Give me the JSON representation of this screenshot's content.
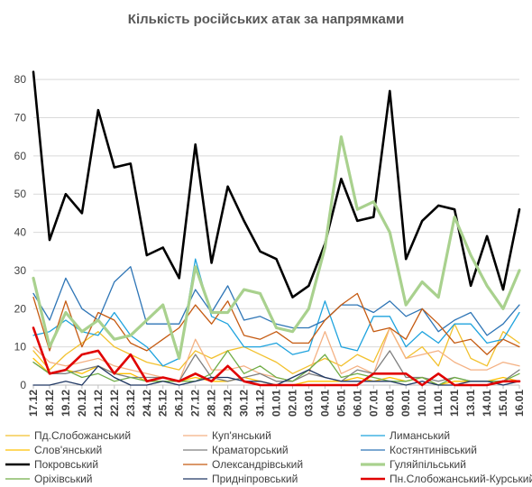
{
  "chart_data": {
    "type": "line",
    "title": "Кількість російських атак за напрямками",
    "xlabel": "",
    "ylabel": "",
    "ylim": [
      0,
      85
    ],
    "yticks": [
      0,
      10,
      20,
      30,
      40,
      50,
      60,
      70,
      80
    ],
    "grid": "horizontal",
    "legend_position": "bottom",
    "categories": [
      "17.12",
      "18.12",
      "19.12",
      "20.12",
      "21.12",
      "22.12",
      "23.12",
      "24.12",
      "25.12",
      "26.12",
      "27.12",
      "28.12",
      "29.12",
      "30.12",
      "31.12",
      "01.01",
      "02.01",
      "03.01",
      "04.01",
      "05.01",
      "06.01",
      "07.01",
      "08.01",
      "09.01",
      "10.01",
      "11.01",
      "12.01",
      "13.01",
      "14.01",
      "15.01",
      "16.01"
    ],
    "series": [
      {
        "name": "Пд.Слобожанський",
        "color": "#f2c12e",
        "width": 1.3,
        "values": [
          9,
          4,
          8,
          11,
          14,
          10,
          8,
          6,
          5,
          4,
          9,
          7,
          9,
          10,
          8,
          6,
          3,
          5,
          7,
          5,
          8,
          6,
          15,
          7,
          10,
          5,
          16,
          7,
          5,
          14,
          11
        ]
      },
      {
        "name": "Куп'янський",
        "color": "#f4b183",
        "width": 1.3,
        "values": [
          10,
          6,
          5,
          6,
          7,
          5,
          4,
          3,
          2,
          1,
          12,
          4,
          4,
          5,
          3,
          2,
          1,
          3,
          14,
          3,
          5,
          3,
          15,
          7,
          8,
          9,
          6,
          4,
          4,
          6,
          5
        ]
      },
      {
        "name": "Лиманський",
        "color": "#1fa3de",
        "width": 1.3,
        "values": [
          13,
          14,
          17,
          14,
          13,
          19,
          13,
          10,
          5,
          7,
          33,
          18,
          16,
          10,
          10,
          11,
          8,
          9,
          22,
          10,
          9,
          18,
          18,
          10,
          14,
          11,
          16,
          16,
          11,
          12,
          19
        ]
      },
      {
        "name": "Слов'янський",
        "color": "#ffc000",
        "width": 1.3,
        "values": [
          7,
          3,
          4,
          3,
          5,
          3,
          3,
          1,
          1,
          1,
          2,
          1,
          1,
          2,
          1,
          0,
          0,
          1,
          1,
          1,
          2,
          1,
          2,
          1,
          2,
          0,
          1,
          1,
          1,
          2,
          1
        ]
      },
      {
        "name": "Краматорський",
        "color": "#7f7f7f",
        "width": 1.3,
        "values": [
          6,
          3,
          3,
          4,
          5,
          3,
          2,
          2,
          2,
          1,
          8,
          2,
          1,
          2,
          3,
          1,
          1,
          3,
          2,
          1,
          4,
          3,
          9,
          2,
          2,
          1,
          2,
          1,
          1,
          1,
          4
        ]
      },
      {
        "name": "Костянтинівський",
        "color": "#2e75b6",
        "width": 1.3,
        "values": [
          24,
          17,
          28,
          20,
          17,
          27,
          31,
          16,
          16,
          16,
          25,
          19,
          26,
          17,
          18,
          16,
          15,
          15,
          17,
          21,
          21,
          19,
          22,
          18,
          20,
          14,
          17,
          19,
          13,
          16,
          21
        ]
      },
      {
        "name": "Покровський",
        "color": "#000000",
        "width": 2.6,
        "values": [
          82,
          38,
          50,
          45,
          72,
          57,
          58,
          34,
          36,
          28,
          63,
          32,
          52,
          43,
          35,
          33,
          23,
          26,
          37,
          54,
          43,
          44,
          77,
          33,
          43,
          47,
          46,
          26,
          39,
          25,
          46
        ]
      },
      {
        "name": "Олександрівський",
        "color": "#c55a11",
        "width": 1.3,
        "values": [
          23,
          9,
          22,
          10,
          19,
          17,
          11,
          9,
          12,
          15,
          21,
          16,
          22,
          13,
          12,
          14,
          11,
          11,
          17,
          21,
          24,
          14,
          15,
          12,
          20,
          16,
          11,
          12,
          8,
          12,
          10
        ]
      },
      {
        "name": "Гуляйпільський",
        "color": "#a9d18e",
        "width": 3.2,
        "values": [
          28,
          10,
          19,
          14,
          17,
          12,
          13,
          17,
          21,
          7,
          31,
          19,
          19,
          25,
          24,
          15,
          14,
          20,
          36,
          65,
          46,
          48,
          40,
          21,
          27,
          23,
          44,
          34,
          26,
          20,
          30
        ]
      },
      {
        "name": "Оріхівський",
        "color": "#70ad47",
        "width": 1.3,
        "values": [
          6,
          3,
          4,
          2,
          3,
          1,
          2,
          1,
          1,
          1,
          1,
          3,
          9,
          3,
          5,
          2,
          1,
          4,
          8,
          2,
          3,
          2,
          1,
          1,
          2,
          0,
          2,
          1,
          1,
          1,
          3
        ]
      },
      {
        "name": "Придніпровський",
        "color": "#203864",
        "width": 1.3,
        "values": [
          0,
          0,
          1,
          0,
          5,
          2,
          0,
          0,
          1,
          0,
          1,
          2,
          2,
          1,
          1,
          0,
          2,
          4,
          2,
          1,
          1,
          1,
          1,
          0,
          1,
          0,
          0,
          1,
          1,
          0,
          1
        ]
      },
      {
        "name": "Пн.Слобожанський-Курський",
        "color": "#e00000",
        "width": 2.6,
        "values": [
          15,
          3,
          4,
          8,
          9,
          3,
          8,
          1,
          2,
          1,
          3,
          1,
          5,
          1,
          0,
          0,
          0,
          0,
          0,
          0,
          0,
          3,
          3,
          3,
          0,
          3,
          0,
          0,
          0,
          1,
          1
        ]
      }
    ]
  }
}
